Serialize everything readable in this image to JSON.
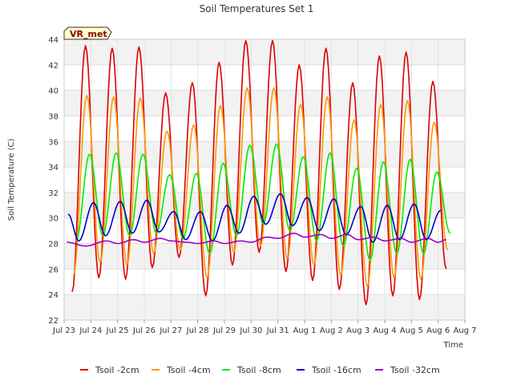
{
  "chart_data": {
    "type": "line",
    "title": "Soil Temperatures Set 1",
    "xlabel": "Time",
    "ylabel": "Soil Temperature (C)",
    "badge": "VR_met",
    "ylim": [
      22,
      44
    ],
    "yticks": [
      22,
      24,
      26,
      28,
      30,
      32,
      34,
      36,
      38,
      40,
      42,
      44
    ],
    "xlim": [
      0,
      15
    ],
    "xticks": [
      {
        "v": 0,
        "label": "Jul 23"
      },
      {
        "v": 1,
        "label": "Jul 24"
      },
      {
        "v": 2,
        "label": "Jul 25"
      },
      {
        "v": 3,
        "label": "Jul 26"
      },
      {
        "v": 4,
        "label": "Jul 27"
      },
      {
        "v": 5,
        "label": "Jul 28"
      },
      {
        "v": 6,
        "label": "Jul 29"
      },
      {
        "v": 7,
        "label": "Jul 30"
      },
      {
        "v": 8,
        "label": "Jul 31"
      },
      {
        "v": 9,
        "label": "Aug 1"
      },
      {
        "v": 10,
        "label": "Aug 2"
      },
      {
        "v": 11,
        "label": "Aug 3"
      },
      {
        "v": 12,
        "label": "Aug 4"
      },
      {
        "v": 13,
        "label": "Aug 5"
      },
      {
        "v": 14,
        "label": "Aug 6"
      },
      {
        "v": 15,
        "label": "Aug 7"
      }
    ],
    "grid": true,
    "legend_position": "bottom",
    "series": [
      {
        "name": "Tsoil -2cm",
        "color": "#dd0000",
        "min_time": [
          0.3,
          1.3,
          2.3,
          3.3,
          4.3,
          5.3,
          6.3,
          7.3,
          8.3,
          9.3,
          10.3,
          11.3,
          12.3,
          13.3,
          14.3
        ],
        "min_values": [
          24.2,
          25.3,
          25.2,
          26.1,
          26.9,
          23.9,
          26.3,
          27.3,
          25.8,
          25.1,
          24.4,
          23.2,
          23.9,
          23.6,
          26.0
        ],
        "max_time": [
          0.8,
          1.8,
          2.8,
          3.8,
          4.8,
          5.8,
          6.8,
          7.8,
          8.8,
          9.8,
          10.8,
          11.8,
          12.8,
          13.8
        ],
        "max_values": [
          43.5,
          43.3,
          43.4,
          39.8,
          40.6,
          42.2,
          43.9,
          43.9,
          42.0,
          43.3,
          40.6,
          42.7,
          43.0,
          40.7
        ]
      },
      {
        "name": "Tsoil -4cm",
        "color": "#ff9900",
        "min_time": [
          0.35,
          1.35,
          2.35,
          3.35,
          4.35,
          5.35,
          6.35,
          7.35,
          8.35,
          9.35,
          10.35,
          11.35,
          12.35,
          13.35,
          14.35
        ],
        "min_values": [
          25.5,
          26.5,
          26.3,
          27.2,
          27.5,
          25.3,
          27.3,
          27.8,
          26.8,
          26.3,
          25.5,
          24.6,
          25.3,
          25.2,
          27.5
        ],
        "max_time": [
          0.85,
          1.85,
          2.85,
          3.85,
          4.85,
          5.85,
          6.85,
          7.85,
          8.85,
          9.85,
          10.85,
          11.85,
          12.85,
          13.85
        ],
        "max_values": [
          39.6,
          39.5,
          39.4,
          36.8,
          37.3,
          38.8,
          40.2,
          40.2,
          38.9,
          39.5,
          37.7,
          38.9,
          39.2,
          37.5
        ]
      },
      {
        "name": "Tsoil -8cm",
        "color": "#00ee00",
        "min_time": [
          0.45,
          1.45,
          2.45,
          3.45,
          4.45,
          5.45,
          6.45,
          7.45,
          8.45,
          9.45,
          10.45,
          11.45,
          12.45,
          13.45,
          14.45
        ],
        "min_values": [
          28.2,
          28.6,
          28.6,
          28.8,
          28.4,
          27.2,
          28.6,
          29.5,
          29.0,
          28.2,
          27.8,
          26.7,
          27.2,
          27.2,
          28.8
        ],
        "max_time": [
          0.95,
          1.95,
          2.95,
          3.95,
          4.95,
          5.95,
          6.95,
          7.95,
          8.95,
          9.95,
          10.95,
          11.95,
          12.95,
          13.95
        ],
        "max_values": [
          35.0,
          35.1,
          35.0,
          33.4,
          33.5,
          34.3,
          35.7,
          35.8,
          34.8,
          35.1,
          33.9,
          34.4,
          34.6,
          33.6
        ]
      },
      {
        "name": "Tsoil -16cm",
        "color": "#0000cc",
        "min_time": [
          0.55,
          1.55,
          2.55,
          3.55,
          4.55,
          5.55,
          6.55,
          7.55,
          8.55,
          9.55,
          10.55,
          11.55,
          12.55,
          13.55
        ],
        "min_values": [
          28.2,
          28.6,
          28.8,
          28.9,
          28.3,
          28.2,
          28.8,
          29.5,
          29.4,
          29.0,
          28.7,
          28.1,
          28.3,
          28.3
        ],
        "max_time": [
          0.15,
          1.1,
          2.1,
          3.1,
          4.1,
          5.1,
          6.1,
          7.1,
          8.1,
          9.1,
          10.1,
          11.1,
          12.1,
          13.1,
          14.1
        ],
        "max_values": [
          30.3,
          31.2,
          31.3,
          31.4,
          30.5,
          30.5,
          31.0,
          31.7,
          31.9,
          31.6,
          31.5,
          30.9,
          31.0,
          31.1,
          30.6
        ]
      },
      {
        "name": "Tsoil -32cm",
        "color": "#9900cc",
        "points": [
          [
            0.1,
            28.1
          ],
          [
            0.8,
            27.8
          ],
          [
            1.6,
            28.2
          ],
          [
            2.0,
            28.0
          ],
          [
            2.6,
            28.3
          ],
          [
            3.0,
            28.1
          ],
          [
            3.6,
            28.4
          ],
          [
            4.0,
            28.2
          ],
          [
            4.6,
            28.1
          ],
          [
            5.0,
            28.0
          ],
          [
            5.6,
            28.2
          ],
          [
            6.0,
            28.0
          ],
          [
            6.6,
            28.2
          ],
          [
            7.0,
            28.1
          ],
          [
            7.6,
            28.5
          ],
          [
            8.0,
            28.4
          ],
          [
            8.6,
            28.8
          ],
          [
            9.0,
            28.5
          ],
          [
            9.6,
            28.7
          ],
          [
            10.0,
            28.4
          ],
          [
            10.6,
            28.7
          ],
          [
            11.0,
            28.3
          ],
          [
            11.6,
            28.5
          ],
          [
            12.0,
            28.2
          ],
          [
            12.6,
            28.4
          ],
          [
            13.0,
            28.1
          ],
          [
            13.6,
            28.4
          ],
          [
            14.0,
            28.1
          ],
          [
            14.3,
            28.3
          ]
        ]
      }
    ]
  }
}
